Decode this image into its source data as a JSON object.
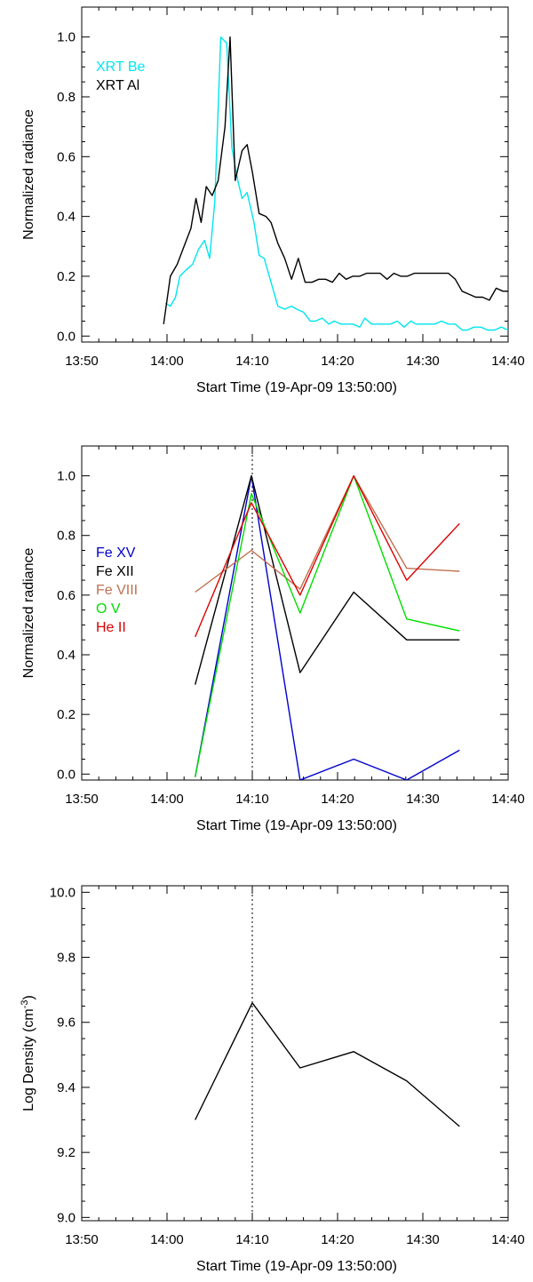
{
  "chart_data": [
    {
      "type": "line",
      "xlabel": "Start Time (19-Apr-09 13:50:00)",
      "ylabel": "Normalized radiance",
      "xlim": [
        0,
        50
      ],
      "ylim": [
        -0.02,
        1.1
      ],
      "xticks": [
        0,
        10,
        20,
        30,
        40,
        50
      ],
      "xtick_labels": [
        "13:50",
        "14:00",
        "14:10",
        "14:20",
        "14:30",
        "14:40"
      ],
      "yticks": [
        0.0,
        0.2,
        0.4,
        0.6,
        0.8,
        1.0
      ],
      "ytick_labels": [
        "0.0",
        "0.2",
        "0.4",
        "0.6",
        "0.8",
        "1.0"
      ],
      "legend_position": "top-left",
      "series": [
        {
          "name": "XRT Be",
          "color": "#00e5ee",
          "x": [
            9.8,
            10.4,
            11.0,
            11.5,
            12.2,
            13.0,
            13.7,
            14.4,
            15.0,
            15.6,
            16.3,
            17.0,
            17.6,
            18.3,
            18.8,
            19.4,
            20.2,
            20.8,
            21.4,
            22.2,
            23.0,
            23.8,
            24.6,
            25.2,
            26.0,
            26.8,
            27.4,
            28.2,
            29.0,
            29.6,
            30.4,
            31.0,
            31.8,
            32.6,
            33.2,
            34.0,
            34.8,
            35.4,
            36.2,
            37.0,
            37.8,
            38.6,
            39.2,
            40.0,
            40.6,
            41.4,
            42.2,
            43.0,
            43.8,
            44.6,
            45.2,
            46.0,
            46.8,
            47.6,
            48.4,
            49.2,
            50.0
          ],
          "values": [
            0.11,
            0.1,
            0.13,
            0.2,
            0.22,
            0.24,
            0.29,
            0.32,
            0.26,
            0.45,
            1.0,
            0.98,
            0.63,
            0.52,
            0.46,
            0.48,
            0.38,
            0.27,
            0.26,
            0.18,
            0.1,
            0.09,
            0.1,
            0.09,
            0.08,
            0.05,
            0.05,
            0.06,
            0.04,
            0.05,
            0.04,
            0.04,
            0.04,
            0.03,
            0.06,
            0.04,
            0.04,
            0.04,
            0.04,
            0.05,
            0.03,
            0.05,
            0.04,
            0.04,
            0.04,
            0.04,
            0.05,
            0.04,
            0.04,
            0.02,
            0.02,
            0.03,
            0.03,
            0.02,
            0.02,
            0.03,
            0.02
          ]
        },
        {
          "name": "XRT Al",
          "color": "#000000",
          "x": [
            9.6,
            10.4,
            11.2,
            12.0,
            12.8,
            13.4,
            14.0,
            14.6,
            15.3,
            16.0,
            16.8,
            17.4,
            18.0,
            18.8,
            19.4,
            20.0,
            20.8,
            21.6,
            22.2,
            23.0,
            23.8,
            24.6,
            25.4,
            26.2,
            27.0,
            27.8,
            28.6,
            29.4,
            30.2,
            31.0,
            31.8,
            32.6,
            33.4,
            34.2,
            35.0,
            35.8,
            36.6,
            37.4,
            38.2,
            39.0,
            39.8,
            40.6,
            41.4,
            42.2,
            43.0,
            43.8,
            44.6,
            45.4,
            46.2,
            47.0,
            47.8,
            48.6,
            49.4,
            50.0
          ],
          "values": [
            0.04,
            0.2,
            0.24,
            0.3,
            0.36,
            0.46,
            0.38,
            0.5,
            0.47,
            0.52,
            0.7,
            1.0,
            0.52,
            0.62,
            0.64,
            0.55,
            0.41,
            0.4,
            0.38,
            0.31,
            0.26,
            0.19,
            0.26,
            0.18,
            0.18,
            0.19,
            0.19,
            0.18,
            0.21,
            0.19,
            0.2,
            0.2,
            0.21,
            0.21,
            0.21,
            0.19,
            0.21,
            0.2,
            0.2,
            0.21,
            0.21,
            0.21,
            0.21,
            0.21,
            0.21,
            0.19,
            0.15,
            0.14,
            0.13,
            0.13,
            0.12,
            0.16,
            0.15,
            0.15
          ]
        }
      ]
    },
    {
      "type": "line",
      "xlabel": "Start Time (19-Apr-09 13:50:00)",
      "ylabel": "Normalized radiance",
      "xlim": [
        0,
        50
      ],
      "ylim": [
        -0.02,
        1.1
      ],
      "xticks": [
        0,
        10,
        20,
        30,
        40,
        50
      ],
      "xtick_labels": [
        "13:50",
        "14:00",
        "14:10",
        "14:20",
        "14:30",
        "14:40"
      ],
      "yticks": [
        0.0,
        0.2,
        0.4,
        0.6,
        0.8,
        1.0
      ],
      "ytick_labels": [
        "0.0",
        "0.2",
        "0.4",
        "0.6",
        "0.8",
        "1.0"
      ],
      "vline_x": 20,
      "legend_position": "middle-left",
      "series": [
        {
          "name": "Fe XV",
          "color": "#0000cc",
          "x": [
            13.3,
            19.9,
            25.6,
            31.9,
            38.1,
            44.3
          ],
          "values": [
            -0.01,
            1.0,
            -0.02,
            0.05,
            -0.02,
            0.08
          ]
        },
        {
          "name": "Fe XII",
          "color": "#000000",
          "x": [
            13.3,
            19.9,
            25.6,
            31.9,
            38.1,
            44.3
          ],
          "values": [
            0.3,
            1.0,
            0.34,
            0.61,
            0.45,
            0.45
          ]
        },
        {
          "name": "Fe VIII",
          "color": "#c07050",
          "x": [
            13.3,
            19.9,
            25.6,
            31.9,
            38.1,
            44.3
          ],
          "values": [
            0.61,
            0.75,
            0.62,
            1.0,
            0.69,
            0.68
          ]
        },
        {
          "name": "O V",
          "color": "#00dd00",
          "x": [
            13.3,
            19.9,
            25.6,
            31.9,
            38.1,
            44.3
          ],
          "values": [
            -0.01,
            0.94,
            0.54,
            1.0,
            0.52,
            0.48
          ]
        },
        {
          "name": "He II",
          "color": "#dd0000",
          "x": [
            13.3,
            19.9,
            25.6,
            31.9,
            38.1,
            44.3
          ],
          "values": [
            0.46,
            0.91,
            0.6,
            1.0,
            0.65,
            0.84
          ]
        }
      ]
    },
    {
      "type": "line",
      "xlabel": "Start Time (19-Apr-09 13:50:00)",
      "ylabel": "Log Density (cm",
      "ylabel_superscript": "-3",
      "ylabel_suffix": ")",
      "xlim": [
        0,
        50
      ],
      "ylim": [
        8.99,
        10.02
      ],
      "xticks": [
        0,
        10,
        20,
        30,
        40,
        50
      ],
      "xtick_labels": [
        "13:50",
        "14:00",
        "14:10",
        "14:20",
        "14:30",
        "14:40"
      ],
      "yticks": [
        9.0,
        9.2,
        9.4,
        9.6,
        9.8,
        10.0
      ],
      "ytick_labels": [
        "9.0",
        "9.2",
        "9.4",
        "9.6",
        "9.8",
        "10.0"
      ],
      "vline_x": 20,
      "series": [
        {
          "color": "#000000",
          "x": [
            13.3,
            20.0,
            25.6,
            31.9,
            38.1,
            44.3
          ],
          "values": [
            9.3,
            9.66,
            9.46,
            9.51,
            9.42,
            9.28
          ]
        }
      ]
    }
  ]
}
